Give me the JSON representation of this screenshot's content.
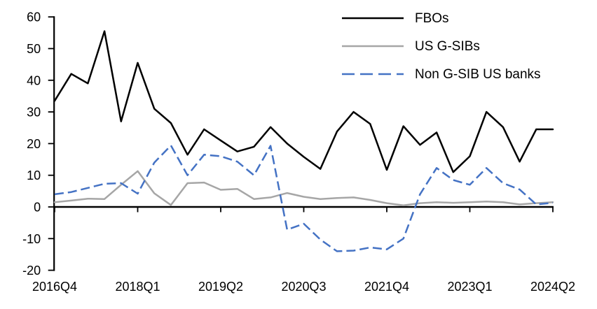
{
  "chart_data": {
    "type": "line",
    "title": "",
    "xlabel": "",
    "ylabel": "",
    "grid": false,
    "legend_position": "top-right",
    "ylim": [
      -20,
      60
    ],
    "y_ticks": [
      60,
      50,
      40,
      30,
      20,
      10,
      0,
      -10,
      -20
    ],
    "x_axis": {
      "tick_labels": [
        "2016Q4",
        "2018Q1",
        "2019Q2",
        "2020Q3",
        "2021Q4",
        "2023Q1",
        "2024Q2"
      ],
      "tick_indices": [
        0,
        5,
        10,
        15,
        20,
        25,
        30
      ]
    },
    "categories": [
      "2016Q4",
      "2017Q1",
      "2017Q2",
      "2017Q3",
      "2017Q4",
      "2018Q1",
      "2018Q2",
      "2018Q3",
      "2018Q4",
      "2019Q1",
      "2019Q2",
      "2019Q3",
      "2019Q4",
      "2020Q1",
      "2020Q2",
      "2020Q3",
      "2020Q4",
      "2021Q1",
      "2021Q2",
      "2021Q3",
      "2021Q4",
      "2022Q1",
      "2022Q2",
      "2022Q3",
      "2022Q4",
      "2023Q1",
      "2023Q2",
      "2023Q3",
      "2023Q4",
      "2024Q1",
      "2024Q2"
    ],
    "series": [
      {
        "name": "FBOs",
        "color": "#000000",
        "style": "solid",
        "values": [
          33.5,
          42,
          39,
          55.5,
          27,
          45.5,
          31,
          26.5,
          16.5,
          24.5,
          21,
          17.5,
          19,
          25.2,
          20,
          15.8,
          12,
          23.8,
          30,
          26.2,
          11.7,
          25.5,
          19.6,
          23.5,
          11,
          16,
          30,
          25.2,
          14.3,
          24.5,
          24.5
        ]
      },
      {
        "name": "US G-SIBs",
        "color": "#a6a6a6",
        "style": "solid",
        "values": [
          1.5,
          2,
          2.6,
          2.5,
          7,
          11.3,
          4.3,
          0.6,
          7.5,
          7.7,
          5.4,
          5.7,
          2.5,
          3,
          4.4,
          3.2,
          2.5,
          2.8,
          3,
          2.2,
          1.2,
          0.5,
          1.2,
          1.5,
          1.3,
          1.5,
          1.7,
          1.5,
          0.8,
          1.2,
          1.5
        ]
      },
      {
        "name": "Non G-SIB US banks",
        "color": "#4472c4",
        "style": "dashed",
        "values": [
          4,
          4.7,
          6,
          7.3,
          7.5,
          4.2,
          14,
          19.4,
          10,
          16.5,
          16,
          14.3,
          10,
          19.3,
          -7.2,
          -5.3,
          -10.3,
          -14,
          -13.8,
          -12.8,
          -13.4,
          -10,
          4,
          12.3,
          8.5,
          7,
          12.3,
          7.5,
          5.5,
          0.8,
          1.3
        ]
      }
    ]
  }
}
